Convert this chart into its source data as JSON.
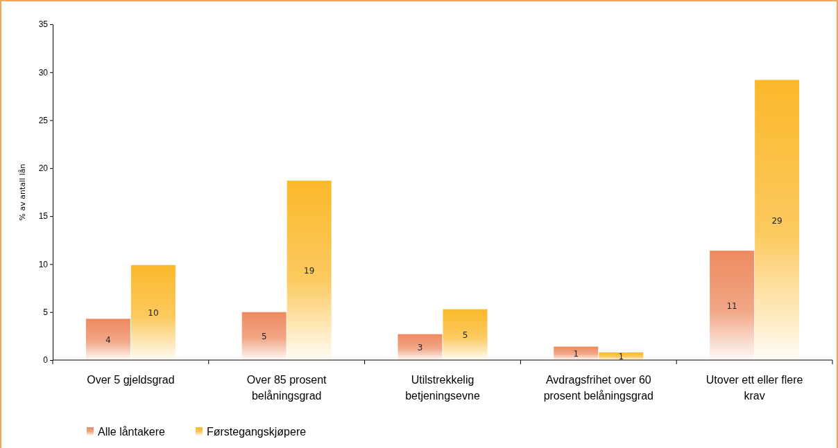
{
  "chart_data": {
    "type": "bar",
    "ylabel": "% av antall lån",
    "categories": [
      "Over 5 gjeldsgrad",
      "Over 85 prosent belåningsgrad",
      "Utilstrekkelig betjeningsevne",
      "Avdragsfrihet over 60 prosent belåningsgrad",
      "Utover ett eller flere krav"
    ],
    "series": [
      {
        "name": "Alle låntakere",
        "color": "#ed8a5f",
        "values": [
          4.3,
          5.0,
          2.7,
          1.4,
          11.4
        ],
        "value_labels": [
          "4",
          "5",
          "3",
          "1",
          "11"
        ]
      },
      {
        "name": "Førstegangskjøpere",
        "color": "#fbb82a",
        "values": [
          9.9,
          18.7,
          5.3,
          0.8,
          29.2
        ],
        "value_labels": [
          "10",
          "19",
          "5",
          "1",
          "29"
        ]
      }
    ],
    "ylim": [
      0,
      35
    ],
    "yticks": [
      0,
      5,
      10,
      15,
      20,
      25,
      30,
      35
    ],
    "grid": false,
    "legend": "bottom left"
  }
}
